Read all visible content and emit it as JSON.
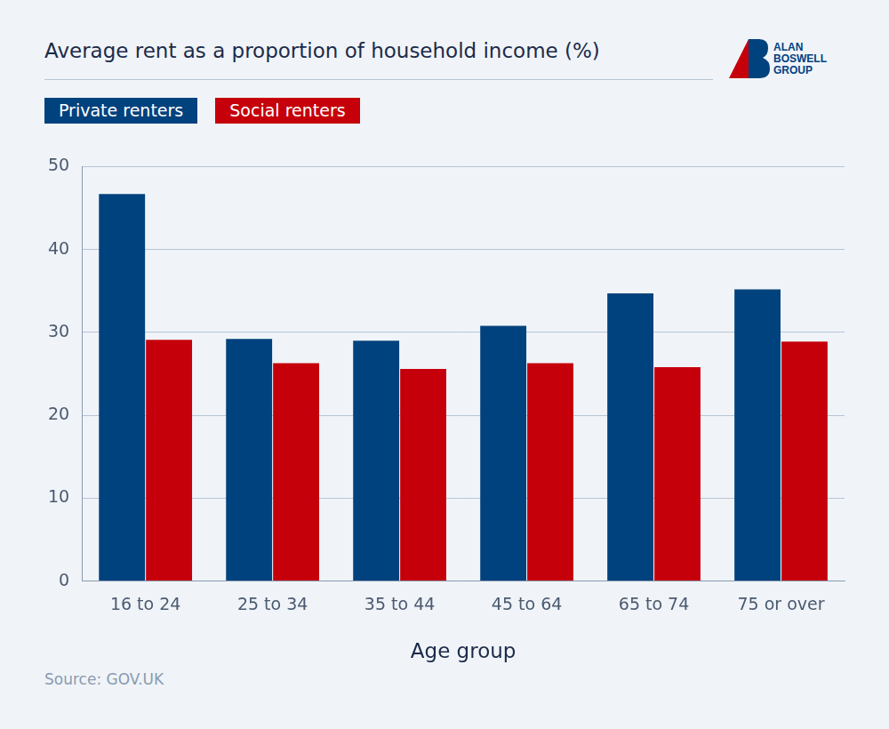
{
  "chart_data": {
    "type": "bar",
    "title": "Average rent as a proportion of household income (%)",
    "logo_text": [
      "ALAN",
      "BOSWELL",
      "GROUP"
    ],
    "source": "Source: GOV.UK",
    "x_label": "Age group",
    "categories": [
      "16 to 24",
      "25 to 34",
      "35 to 44",
      "45 to 64",
      "65 to 74",
      "75 or over"
    ],
    "series": [
      {
        "name": "Private renters",
        "color": "#00427d",
        "values": [
          46.7,
          29.2,
          29.0,
          30.8,
          34.7,
          35.2
        ]
      },
      {
        "name": "Social renters",
        "color": "#c6000b",
        "values": [
          29.1,
          26.3,
          25.6,
          26.3,
          25.8,
          28.9
        ]
      }
    ],
    "ylim": [
      0,
      50
    ],
    "yticks": [
      0,
      10,
      20,
      30,
      40,
      50
    ],
    "grid": true,
    "legend": "top"
  }
}
